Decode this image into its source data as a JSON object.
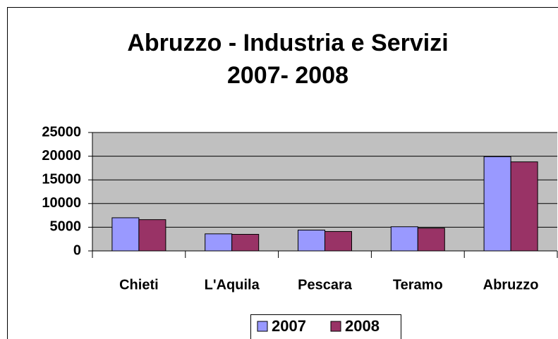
{
  "chart_data": {
    "type": "bar",
    "title": [
      "Abruzzo - Industria e Servizi",
      "2007- 2008"
    ],
    "categories": [
      "Chieti",
      "L'Aquila",
      "Pescara",
      "Teramo",
      "Abruzzo"
    ],
    "series": [
      {
        "name": "2007",
        "color": "#9999ff",
        "values": [
          7000,
          3600,
          4400,
          5100,
          19900
        ]
      },
      {
        "name": "2008",
        "color": "#993366",
        "values": [
          6600,
          3500,
          4100,
          4800,
          18800
        ]
      }
    ],
    "ylim": [
      0,
      25000
    ],
    "yticks": [
      0,
      5000,
      10000,
      15000,
      20000,
      25000
    ],
    "grid": true,
    "legend": "bottom"
  }
}
